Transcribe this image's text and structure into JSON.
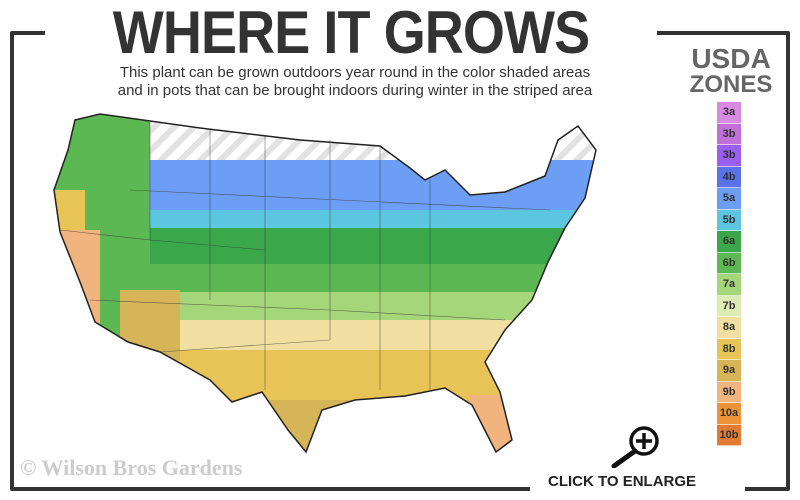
{
  "header": {
    "title": "WHERE IT GROWS",
    "subtitle_line1": "This plant can be grown outdoors year round in the color shaded areas",
    "subtitle_line2": "and in pots that can be brought indoors during winter in the striped area"
  },
  "legend": {
    "title_line1": "USDA",
    "title_line2": "ZONES",
    "zones": [
      {
        "label": "3a",
        "color": "#d88ae0"
      },
      {
        "label": "3b",
        "color": "#c070d8"
      },
      {
        "label": "3b",
        "color": "#9a5ef0"
      },
      {
        "label": "4b",
        "color": "#5a72e8"
      },
      {
        "label": "5a",
        "color": "#6d9ef5"
      },
      {
        "label": "5b",
        "color": "#5cc6e0"
      },
      {
        "label": "6a",
        "color": "#3aa84a"
      },
      {
        "label": "6b",
        "color": "#5cb852"
      },
      {
        "label": "7a",
        "color": "#a6d67a"
      },
      {
        "label": "7b",
        "color": "#dcecb4"
      },
      {
        "label": "8a",
        "color": "#f0dfa0"
      },
      {
        "label": "8b",
        "color": "#e8c456"
      },
      {
        "label": "9a",
        "color": "#d6b458"
      },
      {
        "label": "9b",
        "color": "#f2b47e"
      },
      {
        "label": "10a",
        "color": "#ee9438"
      },
      {
        "label": "10b",
        "color": "#e07c34"
      }
    ]
  },
  "watermark": "© Wilson Bros Gardens",
  "enlarge_label": "CLICK TO ENLARGE"
}
